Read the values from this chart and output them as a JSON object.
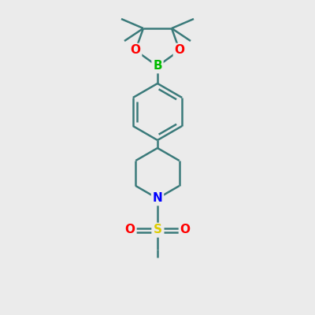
{
  "bg_color": "#ebebeb",
  "bond_color": "#3a7a7a",
  "atom_colors": {
    "B": "#00bb00",
    "O": "#ff0000",
    "N": "#0000ff",
    "S": "#ddcc00"
  },
  "line_width": 1.8,
  "figsize": [
    4.0,
    4.0
  ],
  "dpi": 100
}
